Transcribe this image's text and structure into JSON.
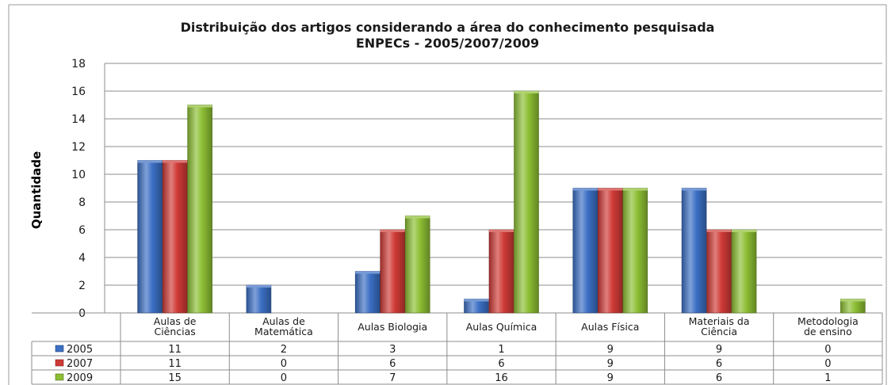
{
  "chart_data": {
    "type": "bar",
    "title": "Distribuição dos artigos considerando a área do conhecimento pesquisada",
    "subtitle": "ENPECs - 2005/2007/2009",
    "ylabel": "Quantidade",
    "xlabel": "",
    "ylim": [
      0,
      18
    ],
    "yticks": [
      0,
      2,
      4,
      6,
      8,
      10,
      12,
      14,
      16,
      18
    ],
    "grid": true,
    "legend": "data-table",
    "categories": [
      [
        "Aulas de",
        "Ciências"
      ],
      [
        "Aulas de",
        "Matemática"
      ],
      [
        "Aulas Biologia"
      ],
      [
        "Aulas Química"
      ],
      [
        "Aulas Física"
      ],
      [
        "Materiais da",
        "Ciência"
      ],
      [
        "Metodologia",
        "de ensino"
      ]
    ],
    "series": [
      {
        "name": "2005",
        "color": "#3b6fc4",
        "values": [
          11,
          2,
          3,
          1,
          9,
          9,
          0
        ]
      },
      {
        "name": "2007",
        "color": "#cf3a36",
        "values": [
          11,
          0,
          6,
          6,
          9,
          6,
          0
        ]
      },
      {
        "name": "2009",
        "color": "#8cbe33",
        "values": [
          15,
          0,
          7,
          16,
          9,
          6,
          1
        ]
      }
    ]
  }
}
